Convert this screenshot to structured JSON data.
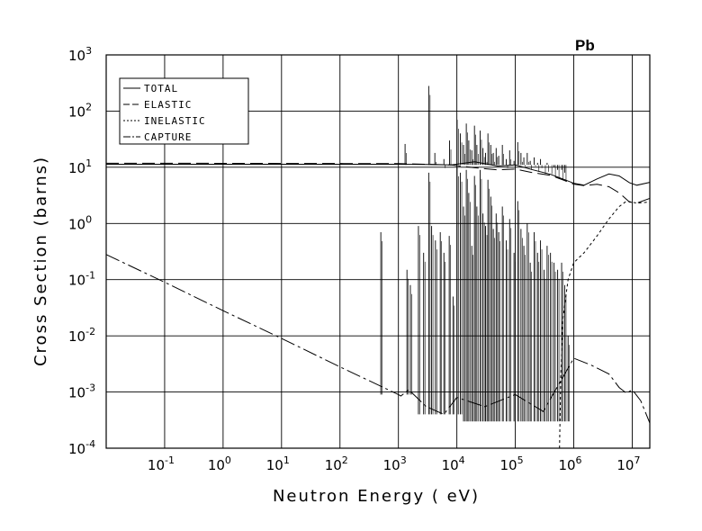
{
  "chart_data": {
    "type": "line",
    "title": "Pb",
    "xlabel": "Neutron Energy ( eV)",
    "ylabel": "Cross Section (barns)",
    "xscale": "log",
    "yscale": "log",
    "xlim": [
      0.01,
      20000000
    ],
    "ylim": [
      0.0001,
      1000
    ],
    "grid": true,
    "legend_position": "top-left",
    "x_ticks": [
      {
        "base": "10",
        "exp": "-1",
        "value": 0.1
      },
      {
        "base": "10",
        "exp": "0",
        "value": 1
      },
      {
        "base": "10",
        "exp": "1",
        "value": 10
      },
      {
        "base": "10",
        "exp": "2",
        "value": 100
      },
      {
        "base": "10",
        "exp": "3",
        "value": 1000
      },
      {
        "base": "10",
        "exp": "4",
        "value": 10000
      },
      {
        "base": "10",
        "exp": "5",
        "value": 100000
      },
      {
        "base": "10",
        "exp": "6",
        "value": 1000000
      },
      {
        "base": "10",
        "exp": "7",
        "value": 10000000
      }
    ],
    "y_ticks": [
      {
        "base": "10",
        "exp": "-4",
        "value": 0.0001
      },
      {
        "base": "10",
        "exp": "-3",
        "value": 0.001
      },
      {
        "base": "10",
        "exp": "-2",
        "value": 0.01
      },
      {
        "base": "10",
        "exp": "-1",
        "value": 0.1
      },
      {
        "base": "10",
        "exp": "0",
        "value": 1
      },
      {
        "base": "10",
        "exp": "1",
        "value": 10
      },
      {
        "base": "10",
        "exp": "2",
        "value": 100
      },
      {
        "base": "10",
        "exp": "3",
        "value": 1000
      }
    ],
    "series": [
      {
        "name": "TOTAL",
        "dash": "",
        "points": [
          [
            0.01,
            11.3
          ],
          [
            1000,
            11.3
          ],
          [
            3000,
            11.2
          ],
          [
            8000,
            11.0
          ],
          [
            20000,
            12.5
          ],
          [
            50000,
            10.5
          ],
          [
            100000,
            11.0
          ],
          [
            200000,
            9.0
          ],
          [
            400000,
            7.5
          ],
          [
            700000,
            6.0
          ],
          [
            1000000,
            5.2
          ],
          [
            1500000,
            4.8
          ],
          [
            2500000,
            6.2
          ],
          [
            4000000,
            7.6
          ],
          [
            6000000,
            7.0
          ],
          [
            9000000,
            5.3
          ],
          [
            12000000,
            4.8
          ],
          [
            20000000,
            5.4
          ]
        ]
      },
      {
        "name": "ELASTIC",
        "dash": "14,6",
        "points": [
          [
            0.01,
            11.8
          ],
          [
            0.3,
            11.8
          ],
          [
            1000,
            11.6
          ],
          [
            3000,
            11.3
          ],
          [
            8000,
            11.0
          ],
          [
            20000,
            9.8
          ],
          [
            50000,
            9.0
          ],
          [
            100000,
            9.3
          ],
          [
            200000,
            8.0
          ],
          [
            400000,
            7.2
          ],
          [
            700000,
            5.8
          ],
          [
            1000000,
            5.0
          ],
          [
            1500000,
            4.7
          ],
          [
            2500000,
            5.0
          ],
          [
            4000000,
            4.5
          ],
          [
            6000000,
            3.5
          ],
          [
            9000000,
            2.4
          ],
          [
            12000000,
            2.3
          ],
          [
            20000000,
            2.8
          ]
        ]
      },
      {
        "name": "INELASTIC",
        "dash": "3,3",
        "points": [
          [
            570000,
            0.0001
          ],
          [
            600000,
            0.002
          ],
          [
            650000,
            0.02
          ],
          [
            800000,
            0.1
          ],
          [
            1000000,
            0.2
          ],
          [
            1500000,
            0.3
          ],
          [
            2500000,
            0.6
          ],
          [
            4000000,
            1.2
          ],
          [
            6000000,
            2.0
          ],
          [
            8000000,
            2.5
          ],
          [
            12000000,
            2.3
          ],
          [
            20000000,
            2.4
          ]
        ]
      },
      {
        "name": "CAPTURE",
        "dash": "16,4,3,4",
        "points": [
          [
            0.01,
            0.28
          ],
          [
            0.1,
            0.09
          ],
          [
            1,
            0.028
          ],
          [
            10,
            0.009
          ],
          [
            100,
            0.0028
          ],
          [
            1000,
            0.0009
          ],
          [
            1100,
            0.00085
          ],
          [
            1500,
            0.0011
          ],
          [
            3000,
            0.00055
          ],
          [
            6000,
            0.0004
          ],
          [
            10000,
            0.0008
          ],
          [
            30000,
            0.00055
          ],
          [
            100000,
            0.0009
          ],
          [
            300000,
            0.00045
          ],
          [
            1000000,
            0.004
          ],
          [
            2000000,
            0.003
          ],
          [
            4000000,
            0.0021
          ],
          [
            6000000,
            0.0012
          ],
          [
            8000000,
            0.00095
          ],
          [
            10000000,
            0.0011
          ],
          [
            14000000,
            0.0007
          ],
          [
            20000000,
            0.00028
          ]
        ]
      }
    ],
    "capture_resonance_peaks": [
      [
        500,
        0.7
      ],
      [
        1400,
        0.15
      ],
      [
        1600,
        0.08
      ],
      [
        2200,
        0.9
      ],
      [
        2700,
        0.3
      ],
      [
        3300,
        8.0
      ],
      [
        3700,
        0.9
      ],
      [
        4300,
        0.5
      ],
      [
        5200,
        0.7
      ],
      [
        6000,
        0.3
      ],
      [
        7400,
        0.6
      ],
      [
        8600,
        0.05
      ],
      [
        10100,
        10.0
      ],
      [
        11500,
        8.0
      ],
      [
        13000,
        2.0
      ],
      [
        14500,
        9.0
      ],
      [
        16000,
        3.5
      ],
      [
        18000,
        0.4
      ],
      [
        20000,
        7.0
      ],
      [
        22000,
        2.0
      ],
      [
        25000,
        9.0
      ],
      [
        28000,
        1.5
      ],
      [
        31000,
        0.9
      ],
      [
        34000,
        6.0
      ],
      [
        38000,
        3.0
      ],
      [
        42000,
        0.8
      ],
      [
        47000,
        1.5
      ],
      [
        52000,
        0.7
      ],
      [
        60000,
        2.0
      ],
      [
        70000,
        0.5
      ],
      [
        80000,
        1.2
      ],
      [
        95000,
        0.3
      ],
      [
        110000,
        2.5
      ],
      [
        125000,
        0.8
      ],
      [
        140000,
        0.4
      ],
      [
        160000,
        1.0
      ],
      [
        180000,
        0.2
      ],
      [
        210000,
        0.7
      ],
      [
        240000,
        0.3
      ],
      [
        270000,
        0.5
      ],
      [
        310000,
        0.15
      ],
      [
        350000,
        0.4
      ],
      [
        400000,
        0.3
      ],
      [
        460000,
        0.2
      ],
      [
        530000,
        0.15
      ],
      [
        620000,
        0.2
      ],
      [
        700000,
        0.08
      ],
      [
        800000,
        0.01
      ]
    ],
    "total_resonance_peaks": [
      [
        1300,
        26
      ],
      [
        3300,
        280
      ],
      [
        4200,
        18
      ],
      [
        6000,
        14
      ],
      [
        7500,
        30
      ],
      [
        10100,
        70
      ],
      [
        11500,
        40
      ],
      [
        13000,
        25
      ],
      [
        14500,
        60
      ],
      [
        16000,
        30
      ],
      [
        18000,
        20
      ],
      [
        20000,
        55
      ],
      [
        22000,
        25
      ],
      [
        25000,
        45
      ],
      [
        28000,
        22
      ],
      [
        31000,
        18
      ],
      [
        34000,
        40
      ],
      [
        38000,
        25
      ],
      [
        42000,
        18
      ],
      [
        47000,
        22
      ],
      [
        52000,
        16
      ],
      [
        60000,
        25
      ],
      [
        70000,
        14
      ],
      [
        80000,
        20
      ],
      [
        95000,
        13
      ],
      [
        110000,
        28
      ],
      [
        125000,
        18
      ],
      [
        140000,
        15
      ],
      [
        160000,
        18
      ],
      [
        180000,
        13
      ],
      [
        210000,
        15
      ],
      [
        240000,
        12
      ],
      [
        270000,
        14
      ],
      [
        310000,
        11
      ],
      [
        350000,
        12
      ],
      [
        400000,
        11
      ],
      [
        460000,
        10
      ],
      [
        530000,
        9
      ],
      [
        620000,
        9
      ],
      [
        700000,
        8
      ]
    ]
  }
}
